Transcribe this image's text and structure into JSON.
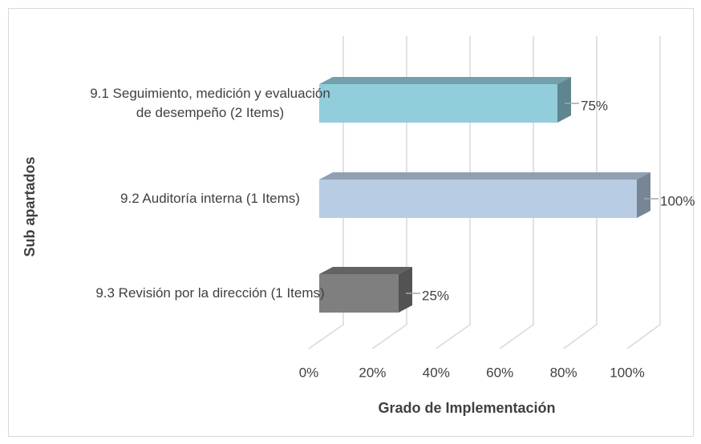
{
  "chart_data": {
    "type": "bar",
    "orientation": "horizontal",
    "categories": [
      "9.1 Seguimiento, medición y evaluación de desempeño (2 Items)",
      "9.2 Auditoría interna (1 Items)",
      "9.3 Revisión por la dirección (1 Items)"
    ],
    "values": [
      75,
      100,
      25
    ],
    "value_labels": [
      "75%",
      "100%",
      "25%"
    ],
    "colors": [
      "#92cddc",
      "#b8cce4",
      "#7f7f7f"
    ],
    "xlim": [
      0,
      100
    ],
    "xticks": [
      {
        "value": 0,
        "label": "0%"
      },
      {
        "value": 20,
        "label": "20%"
      },
      {
        "value": 40,
        "label": "40%"
      },
      {
        "value": 60,
        "label": "60%"
      },
      {
        "value": 80,
        "label": "80%"
      },
      {
        "value": 100,
        "label": "100%"
      }
    ],
    "x_label": "Grado de Implementación",
    "y_label": "Sub apartados",
    "grid": true
  }
}
